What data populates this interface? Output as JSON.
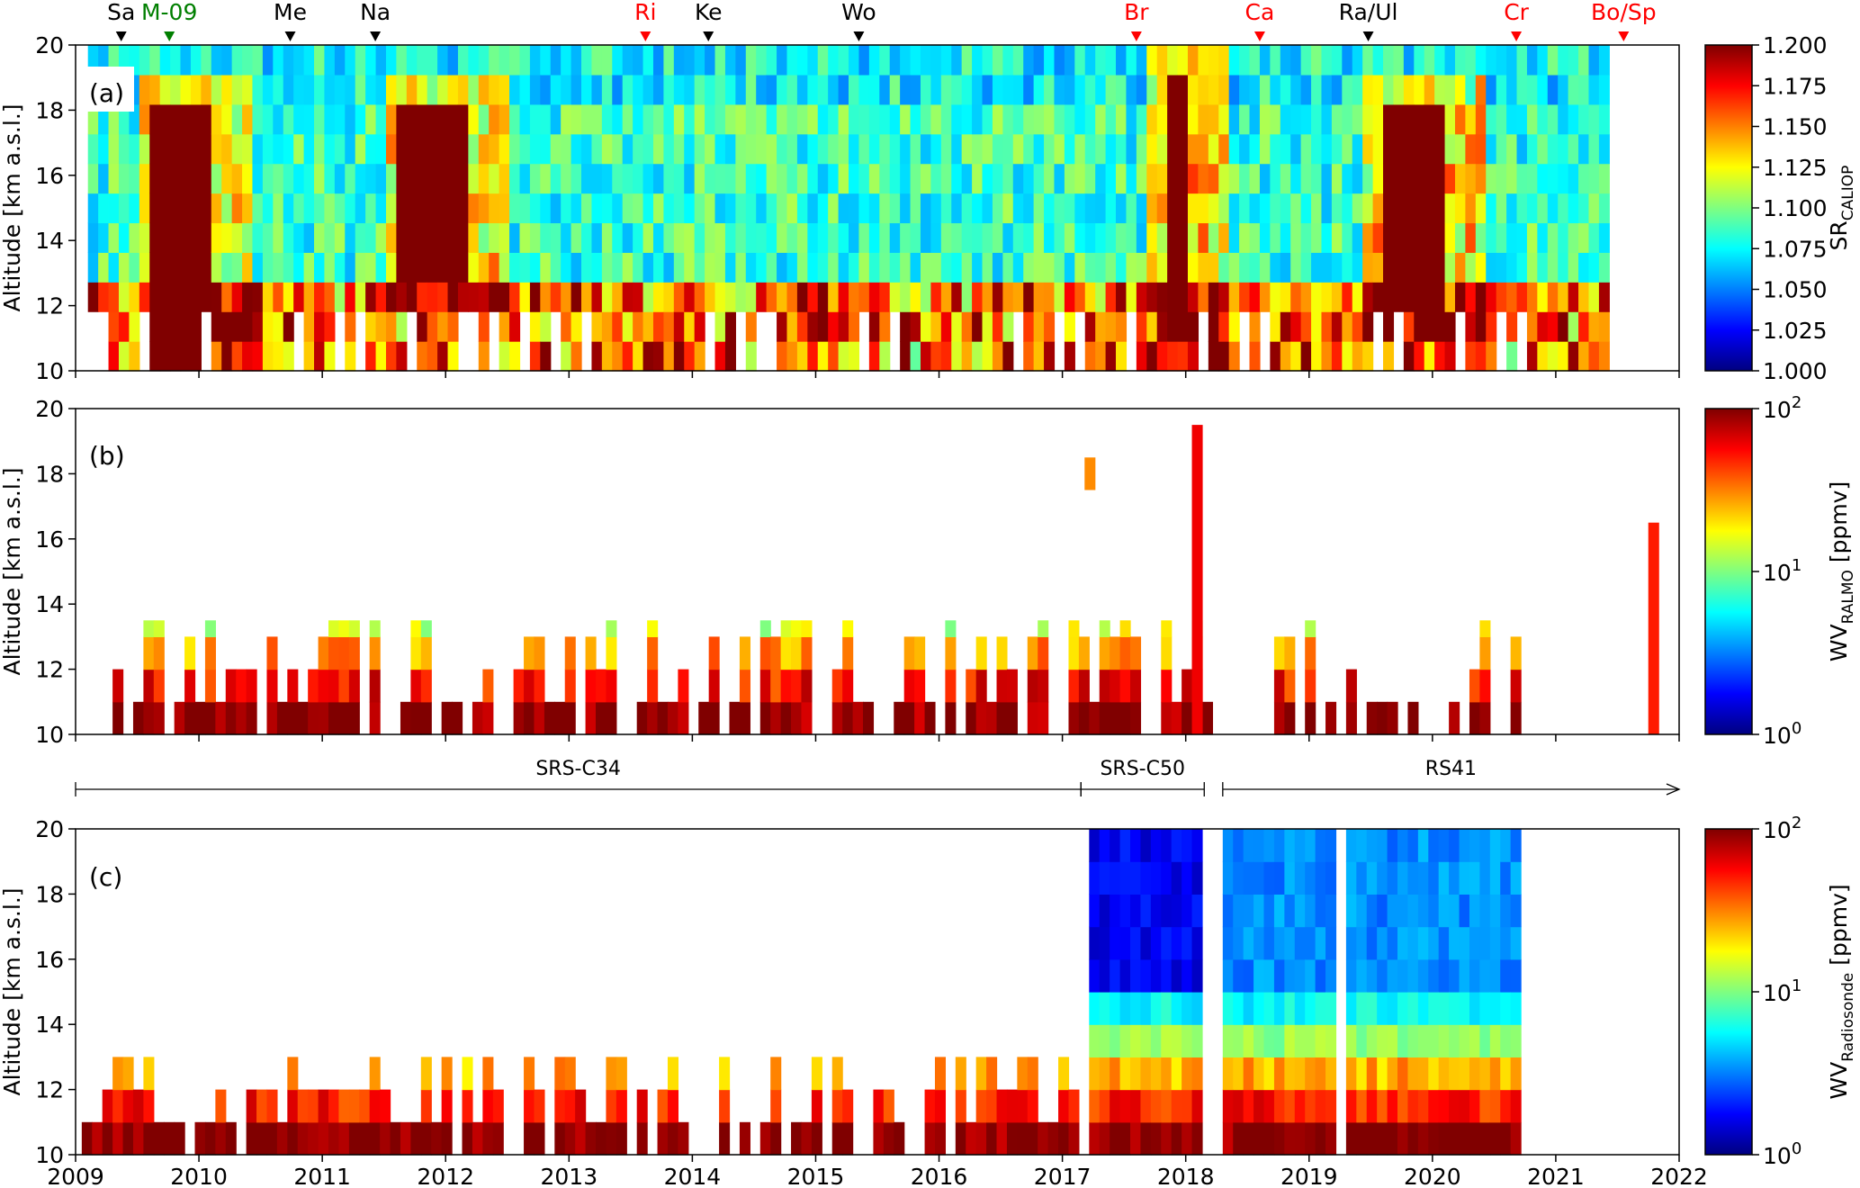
{
  "figure": {
    "shared_x_tick_labels": [
      "2009",
      "2010",
      "2011",
      "2012",
      "2013",
      "2014",
      "2015",
      "2016",
      "2017",
      "2018",
      "2019",
      "2020",
      "2021",
      "2022"
    ]
  },
  "colors": {
    "black_event": "#000000",
    "red_event": "#ff0000",
    "green_event": "#007f00"
  },
  "chart_data": [
    {
      "type": "heatmap",
      "panel_label": "(a)",
      "ylabel": "Altitude [km a.s.l.]",
      "ylim": [
        10,
        20
      ],
      "y_ticks": [
        "10",
        "12",
        "14",
        "16",
        "18",
        "20"
      ],
      "xlim": [
        2009,
        2022
      ],
      "x_ticks": [
        2009,
        2010,
        2011,
        2012,
        2013,
        2014,
        2015,
        2016,
        2017,
        2018,
        2019,
        2020,
        2021,
        2022
      ],
      "colorbar": {
        "label_main": "SR",
        "label_sub": "CALIOP",
        "range": [
          1.0,
          1.2
        ],
        "scale": "linear",
        "colormap": "jet",
        "tick_labels": [
          "1.000",
          "1.025",
          "1.050",
          "1.075",
          "1.100",
          "1.125",
          "1.150",
          "1.175",
          "1.200"
        ]
      },
      "events": [
        {
          "label": "Sa",
          "year": 2009.37,
          "color": "black"
        },
        {
          "label": "M-09",
          "year": 2009.76,
          "color": "green"
        },
        {
          "label": "Me",
          "year": 2010.74,
          "color": "black"
        },
        {
          "label": "Na",
          "year": 2011.43,
          "color": "black"
        },
        {
          "label": "Ri",
          "year": 2013.62,
          "color": "red"
        },
        {
          "label": "Ke",
          "year": 2014.13,
          "color": "black"
        },
        {
          "label": "Wo",
          "year": 2015.35,
          "color": "black"
        },
        {
          "label": "Br",
          "year": 2017.6,
          "color": "red"
        },
        {
          "label": "Ca",
          "year": 2018.6,
          "color": "red"
        },
        {
          "label": "Ra/Ul",
          "year": 2019.48,
          "color": "black"
        },
        {
          "label": "Cr",
          "year": 2020.68,
          "color": "red"
        },
        {
          "label": "Bo/Sp",
          "year": 2021.55,
          "color": "red"
        }
      ],
      "data_extent_years": [
        2009.1,
        2021.45
      ],
      "features": [
        {
          "desc": "high SR plume",
          "years": [
            2009.6,
            2010.05
          ],
          "alt_km": [
            10,
            18
          ],
          "value": ">=1.2"
        },
        {
          "desc": "high SR plume",
          "years": [
            2011.6,
            2012.1
          ],
          "alt_km": [
            13,
            18
          ],
          "value": ">=1.2"
        },
        {
          "desc": "high SR plume",
          "years": [
            2017.8,
            2017.95
          ],
          "alt_km": [
            11,
            19
          ],
          "value": ">=1.2"
        },
        {
          "desc": "high SR plume",
          "years": [
            2019.55,
            2020.05
          ],
          "alt_km": [
            11.5,
            18.5
          ],
          "value": ">=1.2"
        }
      ]
    },
    {
      "type": "heatmap",
      "panel_label": "(b)",
      "ylabel": "Altitude [km a.s.l.]",
      "ylim": [
        10,
        20
      ],
      "y_ticks": [
        "10",
        "12",
        "14",
        "16",
        "18",
        "20"
      ],
      "xlim": [
        2009,
        2022
      ],
      "colorbar": {
        "label_main": "WV",
        "label_sub": "RALMO",
        "label_suffix": "[ppmv]",
        "range": [
          1,
          100
        ],
        "scale": "log",
        "colormap": "jet",
        "tick_labels": [
          {
            "base": "10",
            "exp": "0"
          },
          {
            "base": "10",
            "exp": "1"
          },
          {
            "base": "10",
            "exp": "2"
          }
        ]
      },
      "typical_top_km": 13.5,
      "notable_columns": [
        {
          "year": 2017.18,
          "alt_km": [
            17.5,
            18.5
          ],
          "value_ppmv": 30
        },
        {
          "year": 2018.05,
          "alt_km": [
            10,
            19.5
          ],
          "value_ppmv": 60
        },
        {
          "year": 2021.75,
          "alt_km": [
            10,
            16.5
          ],
          "value_ppmv": 50
        }
      ]
    },
    {
      "type": "heatmap",
      "panel_label": "(c)",
      "ylabel": "Altitude [km a.s.l.]",
      "ylim": [
        10,
        20
      ],
      "y_ticks": [
        "10",
        "12",
        "14",
        "16",
        "18",
        "20"
      ],
      "xlim": [
        2009,
        2022
      ],
      "colorbar": {
        "label_main": "WV",
        "label_sub": "Radiosonde",
        "label_suffix": "[ppmv]",
        "range": [
          1,
          100
        ],
        "scale": "log",
        "colormap": "jet",
        "tick_labels": [
          {
            "base": "10",
            "exp": "0"
          },
          {
            "base": "10",
            "exp": "1"
          },
          {
            "base": "10",
            "exp": "2"
          }
        ]
      },
      "full_profiles_from_year": 2017.15,
      "stratosphere_ppmv_approx": 3
    }
  ],
  "sonde_periods": [
    {
      "label": "SRS-C34",
      "start": 2009.0,
      "end": 2017.15,
      "open_end": false
    },
    {
      "label": "SRS-C50",
      "start": 2017.15,
      "end": 2018.15,
      "open_end": false
    },
    {
      "label": "RS41",
      "start": 2018.3,
      "end": 2022.0,
      "open_end": true
    }
  ]
}
